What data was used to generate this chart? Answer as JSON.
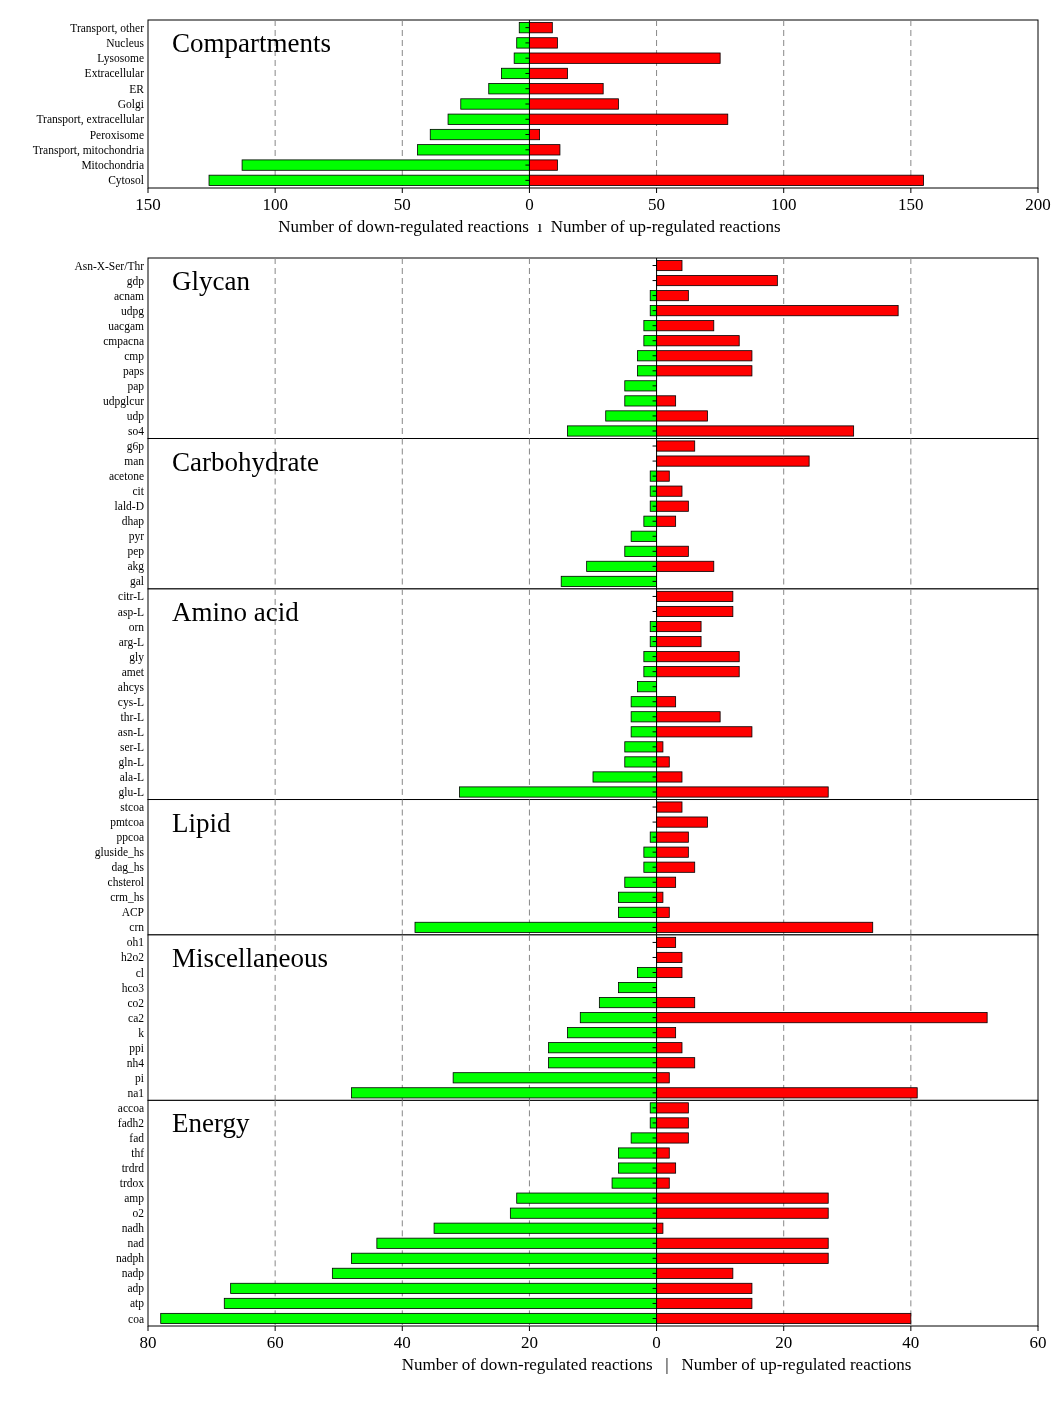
{
  "chart_data": [
    {
      "type": "bar",
      "orientation": "horizontal",
      "stacked": true,
      "annotations": [
        "Compartments"
      ],
      "categories": [
        "Transport, other",
        "Nucleus",
        "Lysosome",
        "Extracellular",
        "ER",
        "Golgi",
        "Transport, extracellular",
        "Peroxisome",
        "Transport, mitochondria",
        "Mitochondria",
        "Cytosol"
      ],
      "series": [
        {
          "color": "#00ff00",
          "values": [
            -4,
            -5,
            -6,
            -11,
            -16,
            -27,
            -32,
            -39,
            -44,
            -113,
            -126
          ]
        },
        {
          "color": "#ff0000",
          "values": [
            9,
            11,
            75,
            15,
            29,
            35,
            78,
            4,
            12,
            11,
            155
          ]
        }
      ],
      "xlim": [
        -150,
        200
      ],
      "xticks": [
        {
          "value": -150,
          "label": "150"
        },
        {
          "value": -100,
          "label": "100"
        },
        {
          "value": -50,
          "label": "50"
        },
        0,
        50,
        100,
        150,
        200
      ],
      "grid": "x",
      "xlabel": "Number of down-regulated reactions  ı  Number of up-regulated reactions"
    },
    {
      "type": "bar",
      "orientation": "horizontal",
      "stacked": true,
      "annotations": [
        "Glycan"
      ],
      "categories": [
        "Asn-X-Ser/Thr",
        "gdp",
        "acnam",
        "udpg",
        "uacgam",
        "cmpacna",
        "cmp",
        "paps",
        "pap",
        "udpglcur",
        "udp",
        "so4"
      ],
      "series": [
        {
          "color": "#00ff00",
          "values": [
            null,
            null,
            -1,
            -1,
            -2,
            -2,
            -3,
            -3,
            -5,
            -5,
            -8,
            -14
          ]
        },
        {
          "color": "#ff0000",
          "values": [
            4,
            19,
            5,
            38,
            9,
            13,
            15,
            15,
            null,
            3,
            8,
            31
          ]
        }
      ],
      "xlim": [
        -80,
        60
      ],
      "xticks": [
        {
          "value": -80,
          "label": null
        },
        {
          "value": -60,
          "label": null
        },
        {
          "value": -40,
          "label": null
        },
        {
          "value": -20,
          "label": null
        },
        {
          "value": 0,
          "label": null
        },
        {
          "value": 20,
          "label": null
        },
        {
          "value": 40,
          "label": null
        },
        {
          "value": 60,
          "label": null
        }
      ],
      "grid": "x",
      "tick_labels": "y"
    },
    {
      "type": "bar",
      "orientation": "horizontal",
      "stacked": true,
      "annotations": [
        "Carbohydrate"
      ],
      "categories": [
        "g6p",
        "man",
        "acetone",
        "cit",
        "lald-D",
        "dhap",
        "pyr",
        "pep",
        "akg",
        "gal"
      ],
      "series": [
        {
          "color": "#00ff00",
          "values": [
            null,
            null,
            -1,
            -1,
            -1,
            -2,
            -4,
            -5,
            -11,
            -15
          ]
        },
        {
          "color": "#ff0000",
          "values": [
            6,
            24,
            2,
            4,
            5,
            3,
            null,
            5,
            9,
            null
          ]
        }
      ],
      "xlim": [
        -80,
        60
      ],
      "xticks": [
        {
          "value": -80,
          "label": null
        },
        {
          "value": -60,
          "label": null
        },
        {
          "value": -40,
          "label": null
        },
        {
          "value": -20,
          "label": null
        },
        {
          "value": 0,
          "label": null
        },
        {
          "value": 20,
          "label": null
        },
        {
          "value": 40,
          "label": null
        },
        {
          "value": 60,
          "label": null
        }
      ],
      "grid": "x",
      "tick_labels": "y"
    },
    {
      "type": "bar",
      "orientation": "horizontal",
      "stacked": true,
      "annotations": [
        "Amino acid"
      ],
      "categories": [
        "citr-L",
        "asp-L",
        "orn",
        "arg-L",
        "gly",
        "amet",
        "ahcys",
        "cys-L",
        "thr-L",
        "asn-L",
        "ser-L",
        "gln-L",
        "ala-L",
        "glu-L"
      ],
      "series": [
        {
          "color": "#00ff00",
          "values": [
            null,
            null,
            -1,
            -1,
            -2,
            -2,
            -3,
            -4,
            -4,
            -4,
            -5,
            -5,
            -10,
            -31
          ]
        },
        {
          "color": "#ff0000",
          "values": [
            12,
            12,
            7,
            7,
            13,
            13,
            null,
            3,
            10,
            15,
            1,
            2,
            4,
            27
          ]
        }
      ],
      "xlim": [
        -80,
        60
      ],
      "xticks": [
        {
          "value": -80,
          "label": null
        },
        {
          "value": -60,
          "label": null
        },
        {
          "value": -40,
          "label": null
        },
        {
          "value": -20,
          "label": null
        },
        {
          "value": 0,
          "label": null
        },
        {
          "value": 20,
          "label": null
        },
        {
          "value": 40,
          "label": null
        },
        {
          "value": 60,
          "label": null
        }
      ],
      "grid": "x",
      "tick_labels": "y"
    },
    {
      "type": "bar",
      "orientation": "horizontal",
      "stacked": true,
      "annotations": [
        "Lipid"
      ],
      "categories": [
        "stcoa",
        "pmtcoa",
        "ppcoa",
        "gluside_hs",
        "dag_hs",
        "chsterol",
        "crm_hs",
        "ACP",
        "crn"
      ],
      "series": [
        {
          "color": "#00ff00",
          "values": [
            null,
            null,
            -1,
            -2,
            -2,
            -5,
            -6,
            -6,
            -38
          ]
        },
        {
          "color": "#ff0000",
          "values": [
            4,
            8,
            5,
            5,
            6,
            3,
            1,
            2,
            34
          ]
        }
      ],
      "xlim": [
        -80,
        60
      ],
      "xticks": [
        {
          "value": -80,
          "label": null
        },
        {
          "value": -60,
          "label": null
        },
        {
          "value": -40,
          "label": null
        },
        {
          "value": -20,
          "label": null
        },
        {
          "value": 0,
          "label": null
        },
        {
          "value": 20,
          "label": null
        },
        {
          "value": 40,
          "label": null
        },
        {
          "value": 60,
          "label": null
        }
      ],
      "grid": "x",
      "tick_labels": "y"
    },
    {
      "type": "bar",
      "orientation": "horizontal",
      "stacked": true,
      "annotations": [
        "Miscellaneous"
      ],
      "categories": [
        "oh1",
        "h2o2",
        "cl",
        "hco3",
        "co2",
        "ca2",
        "k",
        "ppi",
        "nh4",
        "pi",
        "na1"
      ],
      "series": [
        {
          "color": "#00ff00",
          "values": [
            null,
            null,
            -3,
            -6,
            -9,
            -12,
            -14,
            -17,
            -17,
            -32,
            -48
          ]
        },
        {
          "color": "#ff0000",
          "values": [
            3,
            4,
            4,
            null,
            6,
            52,
            3,
            4,
            6,
            2,
            41
          ]
        }
      ],
      "xlim": [
        -80,
        60
      ],
      "xticks": [
        {
          "value": -80,
          "label": null
        },
        {
          "value": -60,
          "label": null
        },
        {
          "value": -40,
          "label": null
        },
        {
          "value": -20,
          "label": null
        },
        {
          "value": 0,
          "label": null
        },
        {
          "value": 20,
          "label": null
        },
        {
          "value": 40,
          "label": null
        },
        {
          "value": 60,
          "label": null
        }
      ],
      "grid": "x",
      "tick_labels": "y"
    },
    {
      "type": "bar",
      "orientation": "horizontal",
      "stacked": true,
      "annotations": [
        "Energy"
      ],
      "categories": [
        "accoa",
        "fadh2",
        "fad",
        "thf",
        "trdrd",
        "trdox",
        "amp",
        "o2",
        "nadh",
        "nad",
        "nadph",
        "nadp",
        "adp",
        "atp",
        "coa"
      ],
      "series": [
        {
          "color": "#00ff00",
          "values": [
            -1,
            -1,
            -4,
            -6,
            -6,
            -7,
            -22,
            -23,
            -35,
            -44,
            -48,
            -51,
            -67,
            -68,
            -78
          ]
        },
        {
          "color": "#ff0000",
          "values": [
            5,
            5,
            5,
            2,
            3,
            2,
            27,
            27,
            1,
            27,
            27,
            12,
            15,
            15,
            40
          ]
        }
      ],
      "xlim": [
        -80,
        60
      ],
      "xticks": [
        {
          "value": -80,
          "label": "80"
        },
        {
          "value": -60,
          "label": "60"
        },
        {
          "value": -40,
          "label": "40"
        },
        {
          "value": -20,
          "label": "20"
        },
        0,
        20,
        40,
        60
      ],
      "grid": "x",
      "xlabel": "Number of down-regulated reactions   |   Number of up-regulated reactions"
    }
  ]
}
